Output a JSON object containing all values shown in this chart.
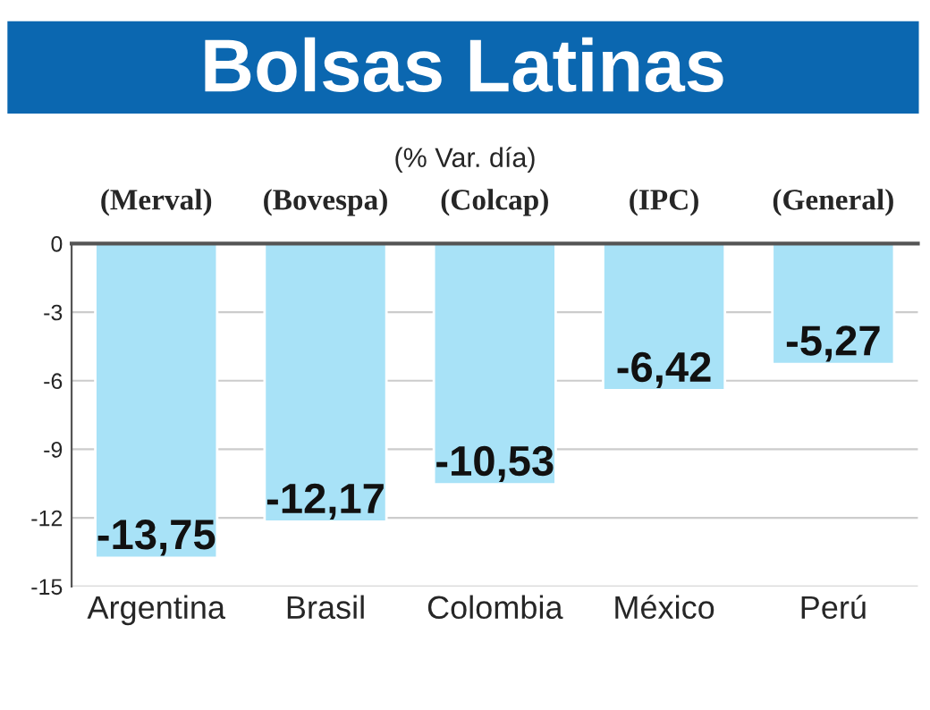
{
  "chart_data": {
    "type": "bar",
    "title": "Bolsas Latinas",
    "subtitle": "(% Var. día)",
    "categories": [
      "Argentina",
      "Brasil",
      "Colombia",
      "México",
      "Perú"
    ],
    "values": [
      -13.75,
      -12.17,
      -10.53,
      -6.42,
      -5.27
    ],
    "value_labels": [
      "-13,75",
      "-12,17",
      "-10,53",
      "-6,42",
      "-5,27"
    ],
    "color": "#a8e2f7",
    "annotations": [
      "(Merval)",
      "(Bovespa)",
      "(Colcap)",
      "(IPC)",
      "(General)"
    ],
    "ylim": [
      -15,
      0
    ],
    "yticks": [
      0,
      -3,
      -6,
      -9,
      -12,
      -15
    ],
    "grid": "y"
  }
}
